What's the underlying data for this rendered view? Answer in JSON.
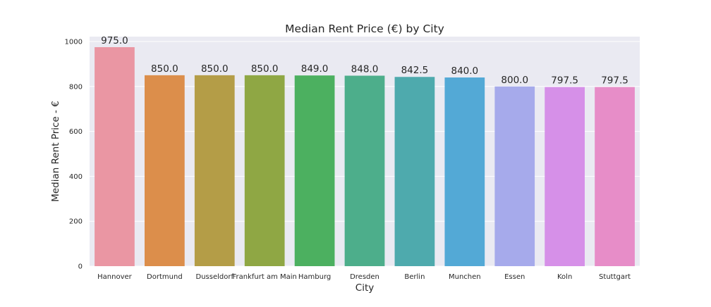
{
  "chart_data": {
    "type": "bar",
    "title": "Median Rent Price (€) by City",
    "xlabel": "City",
    "ylabel": "Median Rent Price - €",
    "categories": [
      "Hannover",
      "Dortmund",
      "Dusseldorf",
      "Frankfurt am Main",
      "Hamburg",
      "Dresden",
      "Berlin",
      "Munchen",
      "Essen",
      "Koln",
      "Stuttgart"
    ],
    "values": [
      975.0,
      850.0,
      850.0,
      850.0,
      849.0,
      848.0,
      842.5,
      840.0,
      800.0,
      797.5,
      797.5
    ],
    "value_labels": [
      "975.0",
      "850.0",
      "850.0",
      "850.0",
      "849.0",
      "848.0",
      "842.5",
      "840.0",
      "800.0",
      "797.5",
      "797.5"
    ],
    "ylim": [
      0,
      1000
    ],
    "yticks": [
      0,
      200,
      400,
      600,
      800,
      1000
    ],
    "grid": true,
    "legend": "none",
    "colors": [
      "#ea96a3",
      "#dc8e4b",
      "#b49d47",
      "#8fa744",
      "#4cb060",
      "#4dae8b",
      "#4eaaad",
      "#53a9d6",
      "#a6aaeb",
      "#d690e8",
      "#e78dc8"
    ],
    "background_color": "#eaeaf2",
    "grid_color": "#ffffff"
  }
}
